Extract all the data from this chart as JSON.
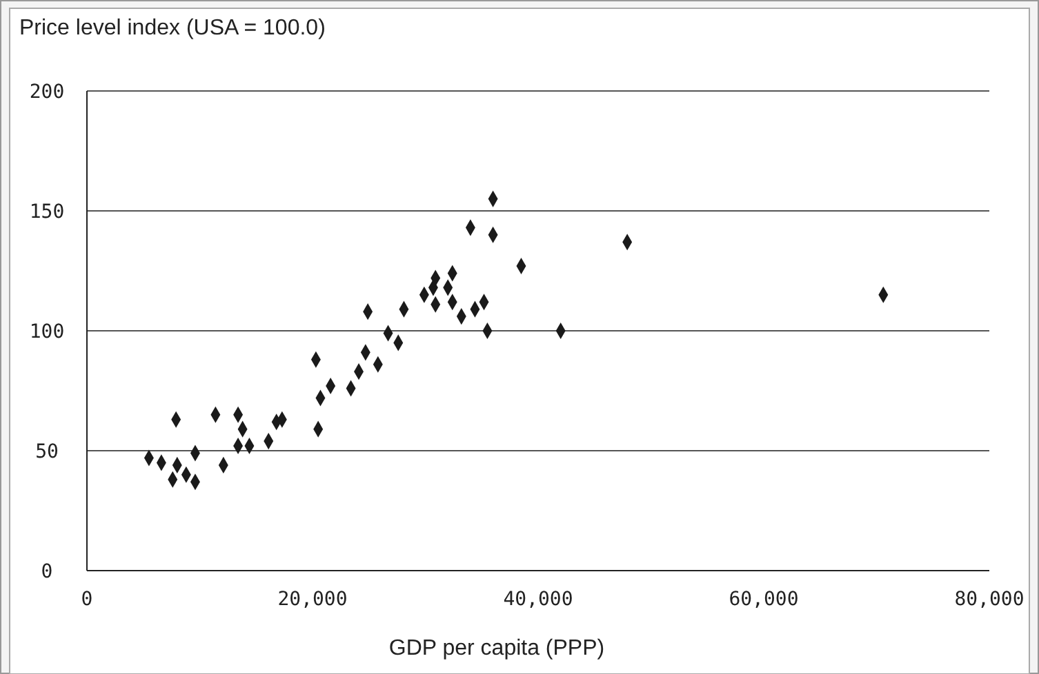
{
  "chart_data": {
    "type": "scatter",
    "ylabel": "Price level index (USA = 100.0)",
    "xlabel": "GDP per capita (PPP)",
    "x": [
      5500,
      6600,
      7900,
      8000,
      7600,
      8800,
      9600,
      9600,
      11400,
      12100,
      13400,
      13800,
      13400,
      14400,
      16100,
      16800,
      17300,
      20300,
      20500,
      20700,
      21600,
      23400,
      24100,
      24700,
      24900,
      25800,
      26700,
      27600,
      28100,
      29900,
      30700,
      30900,
      30900,
      32000,
      32400,
      32400,
      33200,
      34000,
      34400,
      35200,
      35500,
      36000,
      36000,
      38500,
      42000,
      47900,
      70600
    ],
    "values": [
      47,
      45,
      63,
      44,
      38,
      40,
      37,
      49,
      65,
      44,
      65,
      59,
      52,
      52,
      54,
      62,
      63,
      88,
      59,
      72,
      77,
      76,
      83,
      91,
      108,
      86,
      99,
      95,
      109,
      115,
      118,
      122,
      111,
      118,
      124,
      112,
      106,
      143,
      109,
      112,
      100,
      155,
      140,
      127,
      100,
      137,
      115
    ],
    "color": "#1a1a1a",
    "marker": "diamond",
    "xlim": [
      0,
      80000
    ],
    "xticks": [
      {
        "value": 0,
        "label": "0"
      },
      {
        "value": 20000,
        "label": "20,000"
      },
      {
        "value": 40000,
        "label": "40,000"
      },
      {
        "value": 60000,
        "label": "60,000"
      },
      {
        "value": 80000,
        "label": "80,000"
      }
    ],
    "ylim": [
      0,
      200
    ],
    "yticks": [
      0,
      50,
      100,
      150,
      200
    ],
    "grid": "y"
  }
}
